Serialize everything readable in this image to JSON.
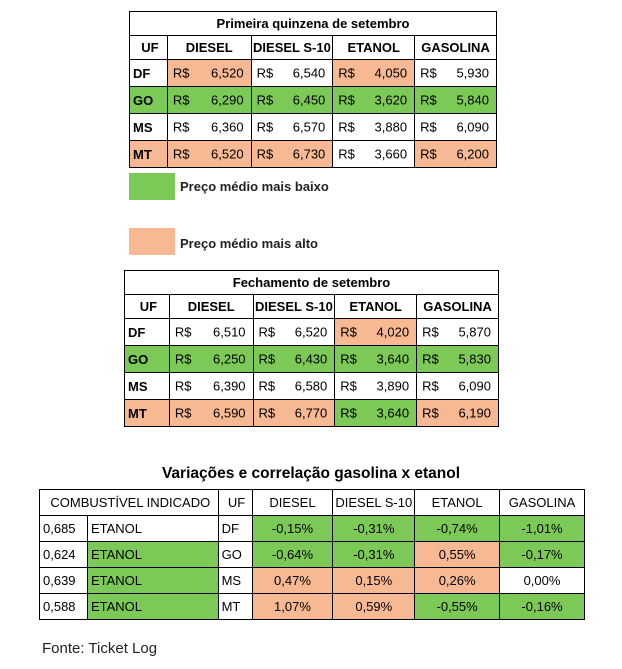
{
  "table1": {
    "title": "Primeira quinzena de setembro",
    "headers": [
      "UF",
      "DIESEL",
      "DIESEL S-10",
      "ETANOL",
      "GASOLINA"
    ],
    "currency": "R$",
    "rows": [
      {
        "uf": "DF",
        "values": [
          "6,520",
          "6,540",
          "4,050",
          "5,930"
        ],
        "colors": [
          "#f7b894",
          "#ffffff",
          "#f7b894",
          "#ffffff"
        ]
      },
      {
        "uf": "GO",
        "values": [
          "6,290",
          "6,450",
          "3,620",
          "5,840"
        ],
        "colors": [
          "#7cc957",
          "#7cc957",
          "#7cc957",
          "#7cc957"
        ]
      },
      {
        "uf": "MS",
        "values": [
          "6,360",
          "6,570",
          "3,880",
          "6,090"
        ],
        "colors": [
          "#ffffff",
          "#ffffff",
          "#ffffff",
          "#ffffff"
        ]
      },
      {
        "uf": "MT",
        "values": [
          "6,520",
          "6,730",
          "3,660",
          "6,200"
        ],
        "colors": [
          "#f7b894",
          "#f7b894",
          "#ffffff",
          "#f7b894"
        ]
      }
    ],
    "uf_colors": [
      "#ffffff",
      "#7cc957",
      "#ffffff",
      "#f7b894"
    ]
  },
  "legend": {
    "low_label": "Preço médio mais baixo",
    "high_label": "Preço médio mais alto",
    "low_color": "#7cc957",
    "high_color": "#f7b894"
  },
  "table2": {
    "title": "Fechamento de setembro",
    "headers": [
      "UF",
      "DIESEL",
      "DIESEL S-10",
      "ETANOL",
      "GASOLINA"
    ],
    "currency": "R$",
    "rows": [
      {
        "uf": "DF",
        "values": [
          "6,510",
          "6,520",
          "4,020",
          "5,870"
        ],
        "colors": [
          "#ffffff",
          "#ffffff",
          "#f7b894",
          "#ffffff"
        ]
      },
      {
        "uf": "GO",
        "values": [
          "6,250",
          "6,430",
          "3,640",
          "5,830"
        ],
        "colors": [
          "#7cc957",
          "#7cc957",
          "#7cc957",
          "#7cc957"
        ]
      },
      {
        "uf": "MS",
        "values": [
          "6,390",
          "6,580",
          "3,890",
          "6,090"
        ],
        "colors": [
          "#ffffff",
          "#ffffff",
          "#ffffff",
          "#ffffff"
        ]
      },
      {
        "uf": "MT",
        "values": [
          "6,590",
          "6,770",
          "3,640",
          "6,190"
        ],
        "colors": [
          "#f7b894",
          "#f7b894",
          "#7cc957",
          "#f7b894"
        ]
      }
    ],
    "uf_colors": [
      "#ffffff",
      "#7cc957",
      "#ffffff",
      "#f7b894"
    ]
  },
  "table3": {
    "title": "Variações e correlação gasolina x etanol",
    "headers": [
      "COMBUSTÍVEL INDICADO",
      "UF",
      "DIESEL",
      "DIESEL S-10",
      "ETANOL",
      "GASOLINA"
    ],
    "rows": [
      {
        "ratio": "0,685",
        "fuel": "ETANOL",
        "fuel_color": "#ffffff",
        "uf": "DF",
        "values": [
          "-0,15%",
          "-0,31%",
          "-0,74%",
          "-1,01%"
        ],
        "colors": [
          "#7cc957",
          "#7cc957",
          "#7cc957",
          "#7cc957"
        ]
      },
      {
        "ratio": "0,624",
        "fuel": "ETANOL",
        "fuel_color": "#7cc957",
        "uf": "GO",
        "values": [
          "-0,64%",
          "-0,31%",
          "0,55%",
          "-0,17%"
        ],
        "colors": [
          "#7cc957",
          "#7cc957",
          "#f7b894",
          "#7cc957"
        ]
      },
      {
        "ratio": "0,639",
        "fuel": "ETANOL",
        "fuel_color": "#7cc957",
        "uf": "MS",
        "values": [
          "0,47%",
          "0,15%",
          "0,26%",
          "0,00%"
        ],
        "colors": [
          "#f7b894",
          "#f7b894",
          "#f7b894",
          "#ffffff"
        ]
      },
      {
        "ratio": "0,588",
        "fuel": "ETANOL",
        "fuel_color": "#7cc957",
        "uf": "MT",
        "values": [
          "1,07%",
          "0,59%",
          "-0,55%",
          "-0,16%"
        ],
        "colors": [
          "#f7b894",
          "#f7b894",
          "#7cc957",
          "#7cc957"
        ]
      }
    ]
  },
  "source": "Fonte: Ticket Log"
}
